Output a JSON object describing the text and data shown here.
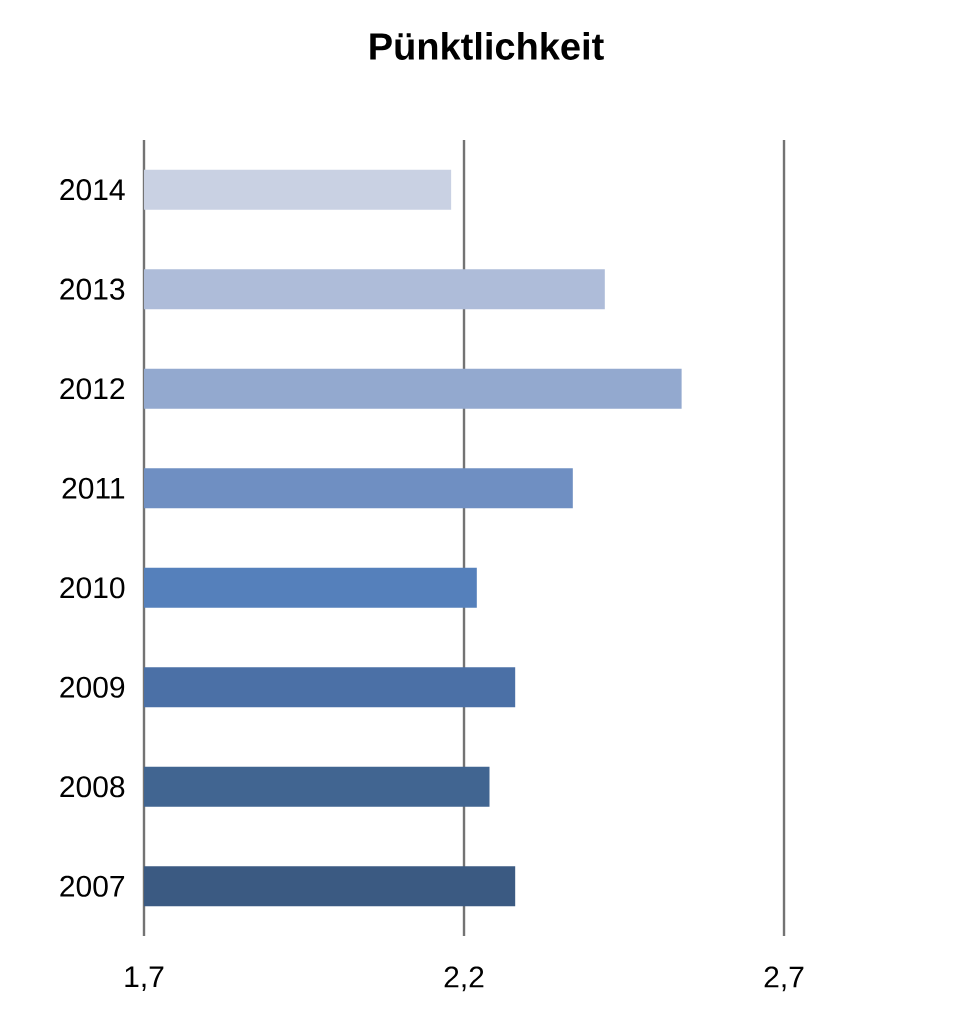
{
  "chart_data": {
    "type": "bar",
    "orientation": "horizontal",
    "title": "Pünktlichkeit",
    "categories": [
      "2014",
      "2013",
      "2012",
      "2011",
      "2010",
      "2009",
      "2008",
      "2007"
    ],
    "values": [
      2.18,
      2.42,
      2.54,
      2.37,
      2.22,
      2.28,
      2.24,
      2.28
    ],
    "colors": [
      "#c9d1e3",
      "#aebcd9",
      "#93a9cf",
      "#6f8fc2",
      "#5580bb",
      "#4b70a6",
      "#416591",
      "#3b5a82"
    ],
    "xlim": [
      1.7,
      2.7
    ],
    "xticks": [
      {
        "value": 1.7,
        "label": "1,7"
      },
      {
        "value": 2.2,
        "label": "2,2"
      },
      {
        "value": 2.7,
        "label": "2,7"
      }
    ],
    "grid": "x"
  }
}
